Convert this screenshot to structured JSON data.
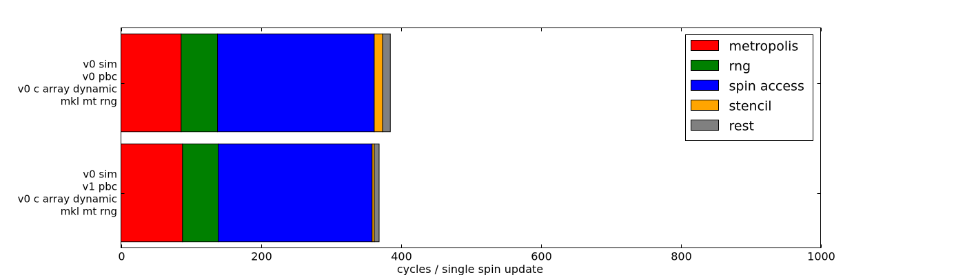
{
  "chart_data": {
    "type": "bar",
    "orientation": "horizontal",
    "stacked": true,
    "categories": [
      [
        "v0 sim",
        "v0 pbc",
        "v0 c array dynamic",
        "mkl mt rng"
      ],
      [
        "v0 sim",
        "v1 pbc",
        "v0 c array dynamic",
        "mkl mt rng"
      ]
    ],
    "series": [
      {
        "name": "metropolis",
        "color": "#ff0000",
        "values": [
          86,
          88
        ]
      },
      {
        "name": "rng",
        "color": "#008000",
        "values": [
          52,
          51
        ]
      },
      {
        "name": "spin access",
        "color": "#0000ff",
        "values": [
          224,
          220
        ]
      },
      {
        "name": "stencil",
        "color": "#ffa500",
        "values": [
          12,
          3
        ]
      },
      {
        "name": "rest",
        "color": "#808080",
        "values": [
          11,
          7
        ]
      }
    ],
    "xlabel": "cycles / single spin update",
    "ylabel": "",
    "title": "",
    "xlim": [
      0,
      1000
    ],
    "xticks": [
      0,
      200,
      400,
      600,
      800,
      1000
    ],
    "xtick_labels": [
      "0",
      "200",
      "400",
      "600",
      "800",
      "1000"
    ],
    "grid": false,
    "legend_position": "top-right"
  }
}
